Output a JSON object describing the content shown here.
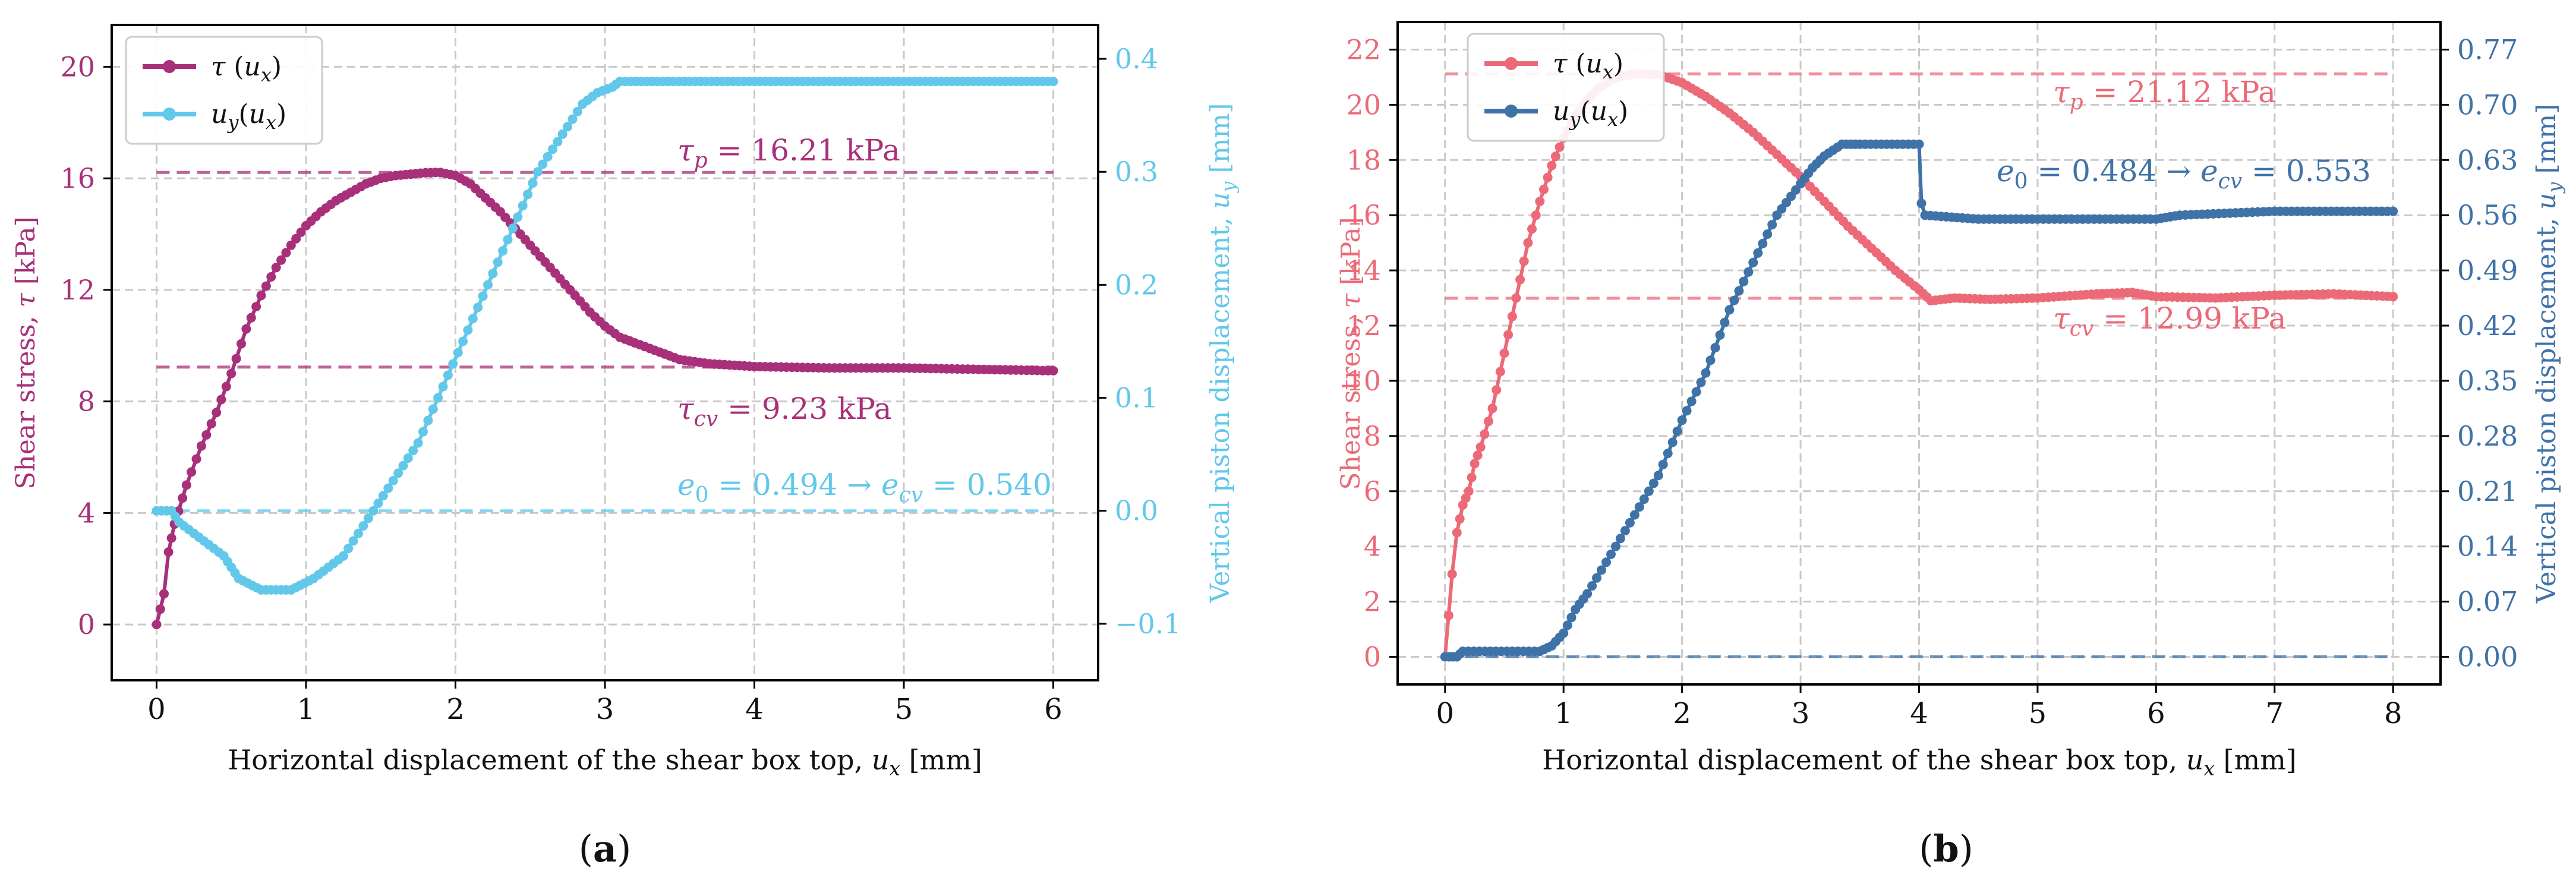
{
  "chart_data": [
    {
      "panel": "a",
      "caption": "(a)",
      "type": "line",
      "xlabel": "Horizontal displacement of the shear box top, u_x [mm]",
      "ylabel_left": "Shear stress, τ [kPa]",
      "ylabel_right": "Vertical piston displacement, u_y [mm]",
      "xlim": [
        -0.3,
        6.3
      ],
      "xticks": [
        0,
        1,
        2,
        3,
        4,
        5,
        6
      ],
      "ylim_left": [
        -2,
        21.5
      ],
      "yticks_left": [
        0,
        4,
        8,
        12,
        16,
        20
      ],
      "ylim_right": [
        -0.15,
        0.43
      ],
      "yticks_right": [
        -0.1,
        0.0,
        0.1,
        0.2,
        0.3,
        0.4
      ],
      "yticks_right_labels": [
        "−0.1",
        "0.0",
        "0.1",
        "0.2",
        "0.3",
        "0.4"
      ],
      "legend": {
        "position": "top-left",
        "entries": [
          "τ (u_x)",
          "u_y(u_x)"
        ]
      },
      "colors": {
        "tau": "#a8307a",
        "uy": "#62c8ea"
      },
      "series": [
        {
          "name": "τ (u_x)",
          "axis": "left",
          "color": "#a8307a",
          "points": [
            [
              0,
              0
            ],
            [
              0.05,
              1.1
            ],
            [
              0.08,
              2.6
            ],
            [
              0.12,
              3.6
            ],
            [
              0.2,
              5.0
            ],
            [
              0.3,
              6.4
            ],
            [
              0.4,
              7.6
            ],
            [
              0.5,
              9.0
            ],
            [
              0.6,
              10.6
            ],
            [
              0.7,
              11.8
            ],
            [
              0.8,
              12.8
            ],
            [
              0.9,
              13.6
            ],
            [
              1.0,
              14.3
            ],
            [
              1.1,
              14.8
            ],
            [
              1.2,
              15.2
            ],
            [
              1.3,
              15.5
            ],
            [
              1.4,
              15.8
            ],
            [
              1.5,
              16.0
            ],
            [
              1.6,
              16.1
            ],
            [
              1.7,
              16.15
            ],
            [
              1.8,
              16.2
            ],
            [
              1.9,
              16.21
            ],
            [
              2.0,
              16.1
            ],
            [
              2.1,
              15.8
            ],
            [
              2.2,
              15.3
            ],
            [
              2.3,
              14.8
            ],
            [
              2.4,
              14.2
            ],
            [
              2.5,
              13.6
            ],
            [
              2.6,
              13.0
            ],
            [
              2.7,
              12.4
            ],
            [
              2.8,
              11.8
            ],
            [
              2.9,
              11.2
            ],
            [
              3.0,
              10.7
            ],
            [
              3.1,
              10.3
            ],
            [
              3.3,
              9.9
            ],
            [
              3.5,
              9.5
            ],
            [
              3.7,
              9.35
            ],
            [
              4.0,
              9.25
            ],
            [
              4.5,
              9.2
            ],
            [
              5.0,
              9.2
            ],
            [
              5.5,
              9.15
            ],
            [
              6.0,
              9.1
            ]
          ]
        },
        {
          "name": "u_y(u_x)",
          "axis": "right",
          "color": "#62c8ea",
          "points": [
            [
              0,
              0
            ],
            [
              0.1,
              0
            ],
            [
              0.15,
              -0.01
            ],
            [
              0.25,
              -0.02
            ],
            [
              0.35,
              -0.03
            ],
            [
              0.45,
              -0.04
            ],
            [
              0.5,
              -0.05
            ],
            [
              0.55,
              -0.06
            ],
            [
              0.7,
              -0.07
            ],
            [
              0.9,
              -0.07
            ],
            [
              1.05,
              -0.06
            ],
            [
              1.15,
              -0.05
            ],
            [
              1.25,
              -0.04
            ],
            [
              1.35,
              -0.02
            ],
            [
              1.45,
              0
            ],
            [
              1.55,
              0.02
            ],
            [
              1.65,
              0.04
            ],
            [
              1.75,
              0.06
            ],
            [
              1.85,
              0.09
            ],
            [
              1.95,
              0.12
            ],
            [
              2.05,
              0.15
            ],
            [
              2.15,
              0.18
            ],
            [
              2.25,
              0.21
            ],
            [
              2.35,
              0.24
            ],
            [
              2.45,
              0.27
            ],
            [
              2.55,
              0.3
            ],
            [
              2.65,
              0.32
            ],
            [
              2.75,
              0.34
            ],
            [
              2.85,
              0.36
            ],
            [
              2.95,
              0.37
            ],
            [
              3.05,
              0.375
            ],
            [
              3.1,
              0.38
            ],
            [
              4.0,
              0.38
            ],
            [
              5.0,
              0.38
            ],
            [
              6.0,
              0.38
            ]
          ]
        }
      ],
      "reference_lines": [
        {
          "axis": "left",
          "value": 16.21,
          "color": "#a8307a"
        },
        {
          "axis": "left",
          "value": 9.23,
          "color": "#a8307a"
        },
        {
          "axis": "right",
          "value": 0.0,
          "color": "#62c8ea"
        }
      ],
      "annotations": [
        {
          "text": "τp = 16.21 kPa",
          "color": "#a8307a"
        },
        {
          "text": "τcv = 9.23 kPa",
          "color": "#a8307a"
        },
        {
          "text": "e0 = 0.494 → ecv = 0.540",
          "color": "#62c8ea"
        }
      ]
    },
    {
      "panel": "b",
      "caption": "(b)",
      "type": "line",
      "xlabel": "Horizontal displacement of the shear box top, u_x [mm]",
      "ylabel_left": "Shear stress, τ [kPa]",
      "ylabel_right": "Vertical piston displacement, u_y [mm]",
      "xlim": [
        -0.4,
        8.4
      ],
      "xticks": [
        0,
        1,
        2,
        3,
        4,
        5,
        6,
        7,
        8
      ],
      "ylim_left": [
        -1.0,
        23.0
      ],
      "yticks_left": [
        0,
        2,
        4,
        6,
        8,
        10,
        12,
        14,
        16,
        18,
        20,
        22
      ],
      "ylim_right": [
        -0.035,
        0.805
      ],
      "yticks_right": [
        0.0,
        0.07,
        0.14,
        0.21,
        0.28,
        0.35,
        0.42,
        0.49,
        0.56,
        0.63,
        0.7,
        0.77
      ],
      "yticks_right_labels": [
        "0.00",
        "0.07",
        "0.14",
        "0.21",
        "0.28",
        "0.35",
        "0.42",
        "0.49",
        "0.56",
        "0.63",
        "0.70",
        "0.77"
      ],
      "legend": {
        "position": "top-left",
        "entries": [
          "τ (u_x)",
          "u_y(u_x)"
        ]
      },
      "colors": {
        "tau": "#ec6a78",
        "uy": "#3f73a8"
      },
      "series": [
        {
          "name": "τ (u_x)",
          "axis": "left",
          "color": "#ec6a78",
          "points": [
            [
              0,
              0
            ],
            [
              0.03,
              1.5
            ],
            [
              0.06,
              3.0
            ],
            [
              0.1,
              4.5
            ],
            [
              0.15,
              5.5
            ],
            [
              0.2,
              6.0
            ],
            [
              0.25,
              7.0
            ],
            [
              0.3,
              7.6
            ],
            [
              0.4,
              9.0
            ],
            [
              0.5,
              11.0
            ],
            [
              0.6,
              13.0
            ],
            [
              0.7,
              15.0
            ],
            [
              0.8,
              16.5
            ],
            [
              0.9,
              17.8
            ],
            [
              1.0,
              18.8
            ],
            [
              1.1,
              19.6
            ],
            [
              1.2,
              20.2
            ],
            [
              1.3,
              20.6
            ],
            [
              1.4,
              20.9
            ],
            [
              1.5,
              21.05
            ],
            [
              1.6,
              21.12
            ],
            [
              1.8,
              21.1
            ],
            [
              2.0,
              20.8
            ],
            [
              2.2,
              20.3
            ],
            [
              2.4,
              19.7
            ],
            [
              2.6,
              19.0
            ],
            [
              2.8,
              18.2
            ],
            [
              3.0,
              17.4
            ],
            [
              3.2,
              16.5
            ],
            [
              3.4,
              15.6
            ],
            [
              3.6,
              14.8
            ],
            [
              3.8,
              14.0
            ],
            [
              4.0,
              13.3
            ],
            [
              4.1,
              12.9
            ],
            [
              4.3,
              13.0
            ],
            [
              4.6,
              12.95
            ],
            [
              5.0,
              13.0
            ],
            [
              5.5,
              13.15
            ],
            [
              5.8,
              13.2
            ],
            [
              6.0,
              13.05
            ],
            [
              6.5,
              13.0
            ],
            [
              7.0,
              13.1
            ],
            [
              7.5,
              13.15
            ],
            [
              8.0,
              13.05
            ]
          ]
        },
        {
          "name": "u_y(u_x)",
          "axis": "right",
          "color": "#3f73a8",
          "points": [
            [
              0,
              0
            ],
            [
              0.1,
              0
            ],
            [
              0.15,
              0.007
            ],
            [
              0.8,
              0.007
            ],
            [
              0.9,
              0.014
            ],
            [
              1.0,
              0.03
            ],
            [
              1.1,
              0.06
            ],
            [
              1.2,
              0.08
            ],
            [
              1.4,
              0.13
            ],
            [
              1.6,
              0.18
            ],
            [
              1.8,
              0.23
            ],
            [
              2.0,
              0.3
            ],
            [
              2.2,
              0.36
            ],
            [
              2.4,
              0.44
            ],
            [
              2.6,
              0.5
            ],
            [
              2.8,
              0.56
            ],
            [
              3.0,
              0.6
            ],
            [
              3.1,
              0.62
            ],
            [
              3.2,
              0.635
            ],
            [
              3.35,
              0.65
            ],
            [
              3.5,
              0.65
            ],
            [
              4.0,
              0.65
            ],
            [
              4.02,
              0.575
            ],
            [
              4.05,
              0.56
            ],
            [
              4.5,
              0.555
            ],
            [
              5.0,
              0.555
            ],
            [
              6.0,
              0.555
            ],
            [
              6.2,
              0.56
            ],
            [
              7.0,
              0.565
            ],
            [
              8.0,
              0.565
            ]
          ]
        }
      ],
      "reference_lines": [
        {
          "axis": "left",
          "value": 21.12,
          "color": "#ec6a78"
        },
        {
          "axis": "left",
          "value": 12.99,
          "color": "#ec6a78"
        },
        {
          "axis": "right",
          "value": 0.0,
          "color": "#3f73a8"
        }
      ],
      "annotations": [
        {
          "text": "τp = 21.12 kPa",
          "color": "#ec6a78"
        },
        {
          "text": "τcv = 12.99 kPa",
          "color": "#ec6a78"
        },
        {
          "text": "e0 = 0.484 → ecv = 0.553",
          "color": "#3f73a8"
        }
      ]
    }
  ],
  "text": {
    "a": {
      "xlabel_main": "Horizontal displacement of the shear box top, ",
      "xlabel_var": "u",
      "xlabel_sub": "x",
      "xlabel_unit": " [mm]",
      "ylabel_left_main": "Shear stress, ",
      "ylabel_left_var": "τ",
      "ylabel_left_unit": " [kPa]",
      "ylabel_right_main": "Vertical piston displacement, ",
      "ylabel_right_var": "u",
      "ylabel_right_sub": "y",
      "ylabel_right_unit": " [mm]",
      "legend_tau_var": "τ",
      "legend_tau_open": " (",
      "legend_tau_u": "u",
      "legend_tau_sub": "x",
      "legend_tau_close": ")",
      "legend_uy_u": "u",
      "legend_uy_sub": "y",
      "legend_uy_open": "(",
      "legend_uy_u2": "u",
      "legend_uy_sub2": "x",
      "legend_uy_close": ")",
      "ann_tp_tau": "τ",
      "ann_tp_sub": "p",
      "ann_tp_rest": " = 16.21 kPa",
      "ann_tcv_tau": "τ",
      "ann_tcv_sub": "cv",
      "ann_tcv_rest": " = 9.23 kPa",
      "ann_e_e0": "e",
      "ann_e_sub0": "0",
      "ann_e_mid": " = 0.494 → ",
      "ann_e_ecv": "e",
      "ann_e_subcv": "cv",
      "ann_e_rest": " = 0.540",
      "caption_open": "(",
      "caption_letter": "a",
      "caption_close": ")"
    },
    "b": {
      "xlabel_main": "Horizontal displacement of the shear box top, ",
      "xlabel_var": "u",
      "xlabel_sub": "x",
      "xlabel_unit": " [mm]",
      "ylabel_left_main": "Shear stress, ",
      "ylabel_left_var": "τ",
      "ylabel_left_unit": " [kPa]",
      "ylabel_right_main": "Vertical piston displacement, ",
      "ylabel_right_var": "u",
      "ylabel_right_sub": "y",
      "ylabel_right_unit": " [mm]",
      "legend_tau_var": "τ",
      "legend_tau_open": " (",
      "legend_tau_u": "u",
      "legend_tau_sub": "x",
      "legend_tau_close": ")",
      "legend_uy_u": "u",
      "legend_uy_sub": "y",
      "legend_uy_open": "(",
      "legend_uy_u2": "u",
      "legend_uy_sub2": "x",
      "legend_uy_close": ")",
      "ann_tp_tau": "τ",
      "ann_tp_sub": "p",
      "ann_tp_rest": " = 21.12 kPa",
      "ann_tcv_tau": "τ",
      "ann_tcv_sub": "cv",
      "ann_tcv_rest": " = 12.99 kPa",
      "ann_e_e0": "e",
      "ann_e_sub0": "0",
      "ann_e_mid": " = 0.484 → ",
      "ann_e_ecv": "e",
      "ann_e_subcv": "cv",
      "ann_e_rest": " = 0.553",
      "caption_open": "(",
      "caption_letter": "b",
      "caption_close": ")"
    }
  }
}
